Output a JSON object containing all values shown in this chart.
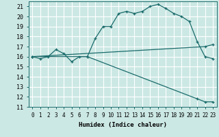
{
  "title": "",
  "xlabel": "Humidex (Indice chaleur)",
  "ylabel": "",
  "bg_color": "#cce8e4",
  "grid_color": "#ffffff",
  "line_color": "#1a6b6b",
  "xlim": [
    -0.5,
    23.5
  ],
  "ylim": [
    11,
    21.5
  ],
  "yticks": [
    11,
    12,
    13,
    14,
    15,
    16,
    17,
    18,
    19,
    20,
    21
  ],
  "xticks": [
    0,
    1,
    2,
    3,
    4,
    5,
    6,
    7,
    8,
    9,
    10,
    11,
    12,
    13,
    14,
    15,
    16,
    17,
    18,
    19,
    20,
    21,
    22,
    23
  ],
  "main_line_x": [
    0,
    1,
    2,
    3,
    4,
    5,
    6,
    7,
    8,
    9,
    10,
    11,
    12,
    13,
    14,
    15,
    16,
    17,
    18,
    19,
    20,
    21,
    22,
    23
  ],
  "main_line_y": [
    16.0,
    15.8,
    16.0,
    16.7,
    16.3,
    15.5,
    16.0,
    16.0,
    17.8,
    19.0,
    19.0,
    20.3,
    20.5,
    20.3,
    20.5,
    21.0,
    21.2,
    20.8,
    20.3,
    20.0,
    19.5,
    17.5,
    16.0,
    15.8
  ],
  "line2_x": [
    0,
    22,
    23
  ],
  "line2_y": [
    16.0,
    17.0,
    17.2
  ],
  "line3_x": [
    0,
    7,
    21,
    22,
    23
  ],
  "line3_y": [
    16.0,
    16.0,
    11.8,
    11.5,
    11.5
  ]
}
